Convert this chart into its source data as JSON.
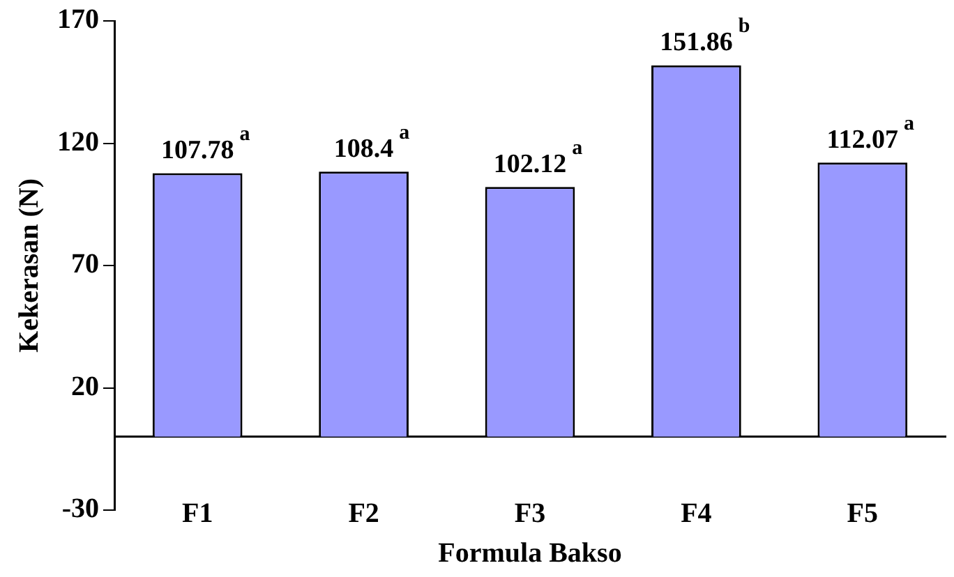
{
  "chart_data": {
    "type": "bar",
    "xlabel": "Formula Bakso",
    "ylabel": "Kekerasan (N)",
    "categories": [
      "F1",
      "F2",
      "F3",
      "F4",
      "F5"
    ],
    "values": [
      107.78,
      108.4,
      102.12,
      151.86,
      112.07
    ],
    "color": "#9999ff",
    "ylim": [
      -30,
      170
    ],
    "yticks": [
      -30,
      20,
      70,
      120,
      170
    ],
    "grid": false,
    "legend": false,
    "data_labels": true,
    "annotations": [
      {
        "text": "a",
        "x": "F1",
        "y": 107.78
      },
      {
        "text": "a",
        "x": "F2",
        "y": 108.4
      },
      {
        "text": "a",
        "x": "F3",
        "y": 102.12
      },
      {
        "text": "b",
        "x": "F4",
        "y": 151.86
      },
      {
        "text": "a",
        "x": "F5",
        "y": 112.07
      }
    ]
  }
}
